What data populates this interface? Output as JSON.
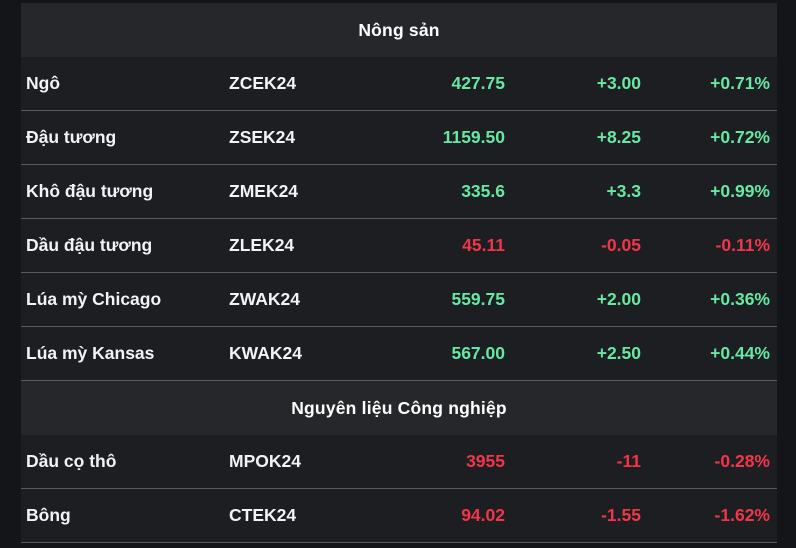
{
  "board": {
    "up_color": "#67e8a2",
    "down_color": "#f23649",
    "sections": [
      {
        "title": "Nông sản",
        "rows": [
          {
            "name": "Ngô",
            "ticker": "ZCEK24",
            "price": "427.75",
            "change": "+3.00",
            "percent": "+0.71%",
            "direction": "up"
          },
          {
            "name": "Đậu tương",
            "ticker": "ZSEK24",
            "price": "1159.50",
            "change": "+8.25",
            "percent": "+0.72%",
            "direction": "up"
          },
          {
            "name": "Khô đậu tương",
            "ticker": "ZMEK24",
            "price": "335.6",
            "change": "+3.3",
            "percent": "+0.99%",
            "direction": "up"
          },
          {
            "name": "Dầu đậu tương",
            "ticker": "ZLEK24",
            "price": "45.11",
            "change": "-0.05",
            "percent": "-0.11%",
            "direction": "down"
          },
          {
            "name": "Lúa mỳ Chicago",
            "ticker": "ZWAK24",
            "price": "559.75",
            "change": "+2.00",
            "percent": "+0.36%",
            "direction": "up"
          },
          {
            "name": "Lúa mỳ Kansas",
            "ticker": "KWAK24",
            "price": "567.00",
            "change": "+2.50",
            "percent": "+0.44%",
            "direction": "up"
          }
        ]
      },
      {
        "title": "Nguyên liệu Công nghiệp",
        "rows": [
          {
            "name": "Dầu cọ thô",
            "ticker": "MPOK24",
            "price": "3955",
            "change": "-11",
            "percent": "-0.28%",
            "direction": "down"
          },
          {
            "name": "Bông",
            "ticker": "CTEK24",
            "price": "94.02",
            "change": "-1.55",
            "percent": "-1.62%",
            "direction": "down"
          }
        ]
      }
    ]
  }
}
